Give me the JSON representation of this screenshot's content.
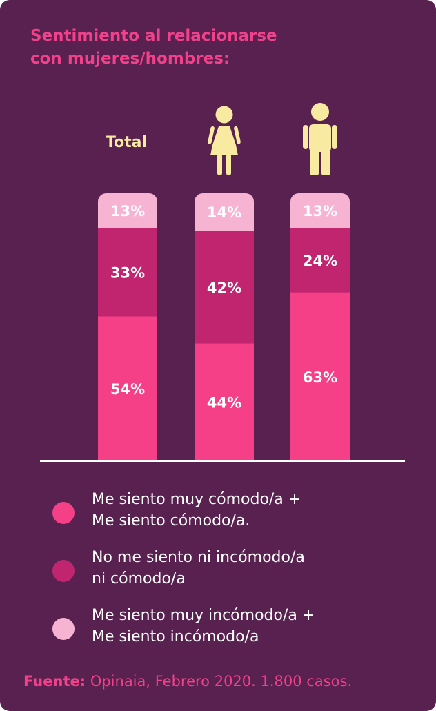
{
  "title": {
    "line1": "Sentimiento al relacionarse",
    "line2": "con mujeres/hombres:"
  },
  "colors": {
    "background": "#58214f",
    "accent": "#f2408a",
    "comfortable": "#f53f87",
    "neutral": "#c2256f",
    "uncomfortable": "#f7b3d2",
    "icon": "#f8eaa0",
    "total_label": "#f8eaa0"
  },
  "chart_data": {
    "type": "bar",
    "stacked": true,
    "categories": [
      "Total",
      "Mujeres",
      "Hombres"
    ],
    "category_labels": [
      "Total",
      "",
      ""
    ],
    "category_icons": [
      "",
      "woman-icon",
      "man-icon"
    ],
    "series": [
      {
        "name": "Me siento muy cómodo/a + Me siento cómodo/a.",
        "values": [
          54,
          44,
          63
        ],
        "labels": [
          "54%",
          "44%",
          "63%"
        ]
      },
      {
        "name": "No me siento ni incómodo/a ni cómodo/a",
        "values": [
          33,
          42,
          24
        ],
        "labels": [
          "33%",
          "42%",
          "24%"
        ]
      },
      {
        "name": "Me siento muy incómodo/a + Me siento incómodo/a",
        "values": [
          13,
          14,
          13
        ],
        "labels": [
          "13%",
          "14%",
          "13%"
        ]
      }
    ],
    "ylim": [
      0,
      100
    ],
    "grid": false,
    "legend_position": "bottom"
  },
  "legend": [
    {
      "line1": "Me siento muy cómodo/a +",
      "line2": "Me siento cómodo/a."
    },
    {
      "line1": "No me siento ni incómodo/a",
      "line2": "ni cómodo/a"
    },
    {
      "line1": "Me siento muy incómodo/a +",
      "line2": "Me siento incómodo/a"
    }
  ],
  "source": {
    "label": "Fuente:",
    "text": "Opinaia, Febrero 2020. 1.800 casos."
  }
}
